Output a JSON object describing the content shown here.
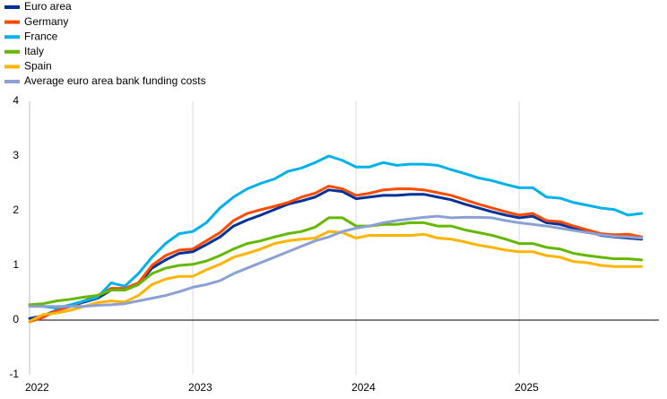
{
  "chart_data": {
    "type": "line",
    "categories": [
      "2022",
      null,
      null,
      null,
      null,
      null,
      null,
      null,
      null,
      null,
      null,
      null,
      "2023",
      null,
      null,
      null,
      null,
      null,
      null,
      null,
      null,
      null,
      null,
      null,
      "2024",
      null,
      null,
      null,
      null,
      null,
      null,
      null,
      null,
      null,
      null,
      null,
      "2025",
      null,
      null,
      null,
      null,
      null,
      null,
      null,
      null,
      null
    ],
    "ylim": [
      -1,
      4
    ],
    "yticks": [
      -1,
      0,
      1,
      2,
      3,
      4
    ],
    "xgrid": true,
    "zero_line": true,
    "legend": "top-left",
    "series": [
      {
        "name": "Euro area",
        "color": "#003299",
        "values": [
          0.03,
          0.08,
          0.18,
          0.25,
          0.33,
          0.4,
          0.55,
          0.55,
          0.65,
          0.95,
          1.1,
          1.22,
          1.25,
          1.38,
          1.52,
          1.72,
          1.83,
          1.92,
          2.02,
          2.12,
          2.18,
          2.25,
          2.38,
          2.35,
          2.22,
          2.25,
          2.28,
          2.28,
          2.3,
          2.3,
          2.25,
          2.2,
          2.12,
          2.05,
          1.98,
          1.92,
          1.87,
          1.9,
          1.78,
          1.75,
          1.68,
          1.62,
          1.55,
          1.52,
          1.5,
          1.48
        ]
      },
      {
        "name": "Germany",
        "color": "#ff4b00",
        "values": [
          -0.03,
          0.05,
          0.18,
          0.25,
          0.35,
          0.45,
          0.58,
          0.58,
          0.68,
          1.0,
          1.18,
          1.28,
          1.3,
          1.45,
          1.6,
          1.82,
          1.95,
          2.02,
          2.08,
          2.15,
          2.25,
          2.32,
          2.45,
          2.4,
          2.28,
          2.32,
          2.38,
          2.4,
          2.4,
          2.38,
          2.33,
          2.28,
          2.2,
          2.12,
          2.05,
          1.98,
          1.92,
          1.95,
          1.82,
          1.8,
          1.72,
          1.65,
          1.58,
          1.56,
          1.57,
          1.52
        ]
      },
      {
        "name": "France",
        "color": "#00b1ea",
        "values": [
          0.28,
          0.25,
          0.22,
          0.28,
          0.35,
          0.42,
          0.68,
          0.62,
          0.85,
          1.15,
          1.4,
          1.58,
          1.62,
          1.78,
          2.05,
          2.25,
          2.4,
          2.5,
          2.58,
          2.72,
          2.78,
          2.88,
          3.0,
          2.92,
          2.8,
          2.8,
          2.88,
          2.83,
          2.85,
          2.85,
          2.83,
          2.75,
          2.68,
          2.6,
          2.55,
          2.48,
          2.42,
          2.42,
          2.25,
          2.23,
          2.15,
          2.1,
          2.05,
          2.02,
          1.92,
          1.95
        ]
      },
      {
        "name": "Italy",
        "color": "#65b800",
        "values": [
          0.28,
          0.3,
          0.35,
          0.38,
          0.42,
          0.45,
          0.55,
          0.55,
          0.65,
          0.85,
          0.95,
          1.0,
          1.02,
          1.08,
          1.18,
          1.3,
          1.4,
          1.45,
          1.52,
          1.58,
          1.62,
          1.7,
          1.87,
          1.87,
          1.72,
          1.72,
          1.75,
          1.75,
          1.78,
          1.78,
          1.72,
          1.72,
          1.65,
          1.6,
          1.55,
          1.48,
          1.4,
          1.4,
          1.33,
          1.3,
          1.22,
          1.18,
          1.15,
          1.12,
          1.12,
          1.1
        ]
      },
      {
        "name": "Spain",
        "color": "#ffb400",
        "values": [
          -0.02,
          0.1,
          0.13,
          0.18,
          0.25,
          0.32,
          0.35,
          0.33,
          0.45,
          0.65,
          0.75,
          0.8,
          0.8,
          0.92,
          1.02,
          1.15,
          1.22,
          1.3,
          1.4,
          1.45,
          1.48,
          1.5,
          1.62,
          1.6,
          1.5,
          1.55,
          1.55,
          1.55,
          1.55,
          1.57,
          1.5,
          1.48,
          1.43,
          1.37,
          1.33,
          1.28,
          1.25,
          1.25,
          1.18,
          1.15,
          1.07,
          1.05,
          1.0,
          0.98,
          0.98,
          0.98
        ]
      },
      {
        "name": "Average euro area bank funding costs",
        "color": "#8ba1d5",
        "values": [
          0.25,
          0.25,
          0.25,
          0.25,
          0.25,
          0.27,
          0.28,
          0.3,
          0.35,
          0.4,
          0.45,
          0.52,
          0.6,
          0.65,
          0.72,
          0.85,
          0.95,
          1.05,
          1.15,
          1.25,
          1.35,
          1.45,
          1.52,
          1.62,
          1.68,
          1.72,
          1.78,
          1.82,
          1.85,
          1.88,
          1.9,
          1.87,
          1.88,
          1.88,
          1.87,
          1.82,
          1.78,
          1.75,
          1.72,
          1.68,
          1.64,
          1.6,
          1.56,
          1.53,
          1.52,
          1.5
        ]
      }
    ]
  }
}
